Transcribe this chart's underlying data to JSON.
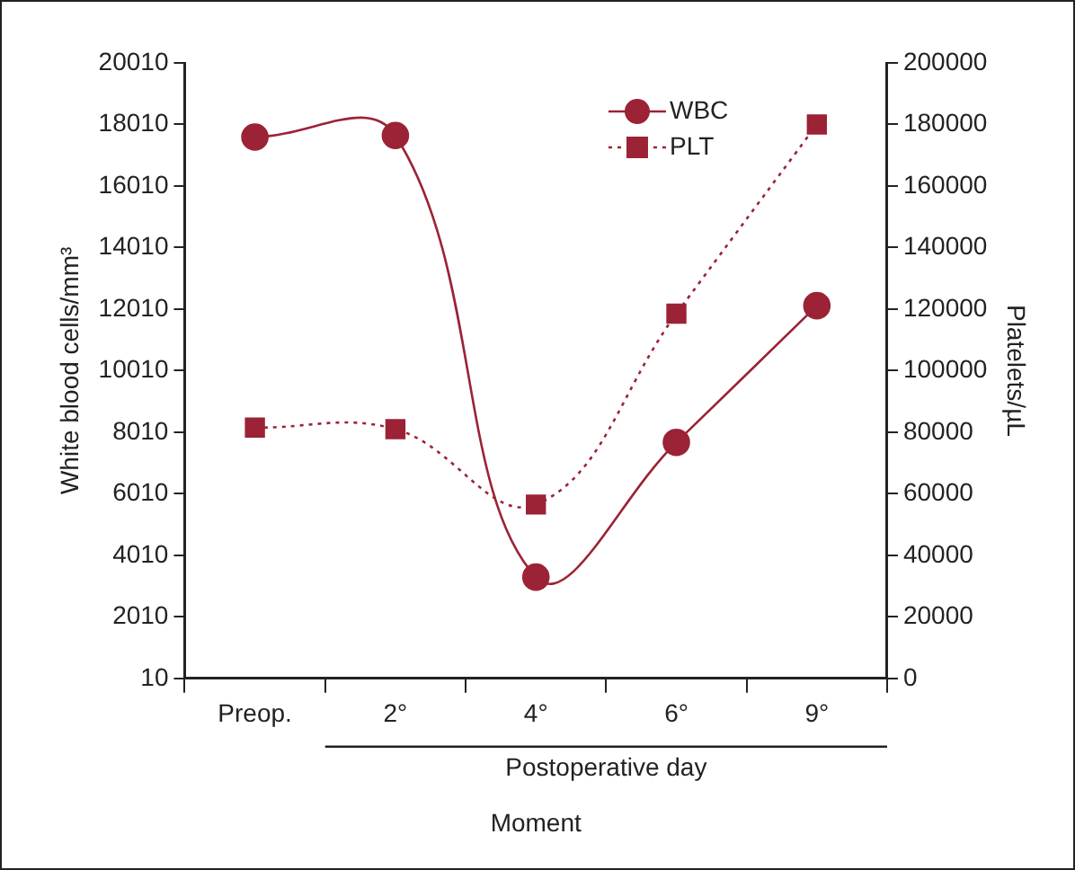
{
  "chart_data": {
    "type": "line",
    "categories": [
      "Preop.",
      "2°",
      "4°",
      "6°",
      "9°"
    ],
    "series": [
      {
        "name": "WBC",
        "color": "#9b2335",
        "marker": "circle",
        "line_style": "solid",
        "values": [
          17600,
          17650,
          3300,
          7680,
          12120
        ]
      },
      {
        "name": "PLT",
        "color": "#9b2335",
        "marker": "square",
        "line_style": "dotted",
        "axis": "y2",
        "values": [
          81500,
          81000,
          56500,
          118500,
          180000
        ]
      }
    ],
    "ylabel": "White blood cells/mm³",
    "y2label": "Platelets/µL",
    "xlabel": "Moment",
    "ylim": [
      10,
      20010
    ],
    "yticks": [
      10,
      2010,
      4010,
      6010,
      8010,
      10010,
      12010,
      14010,
      16010,
      18010,
      20010
    ],
    "y2lim": [
      0,
      200000
    ],
    "y2ticks": [
      0,
      20000,
      40000,
      60000,
      80000,
      100000,
      120000,
      140000,
      160000,
      180000,
      200000
    ],
    "annotations": [
      "Postoperative day"
    ],
    "legend": "top right",
    "grid": false
  }
}
